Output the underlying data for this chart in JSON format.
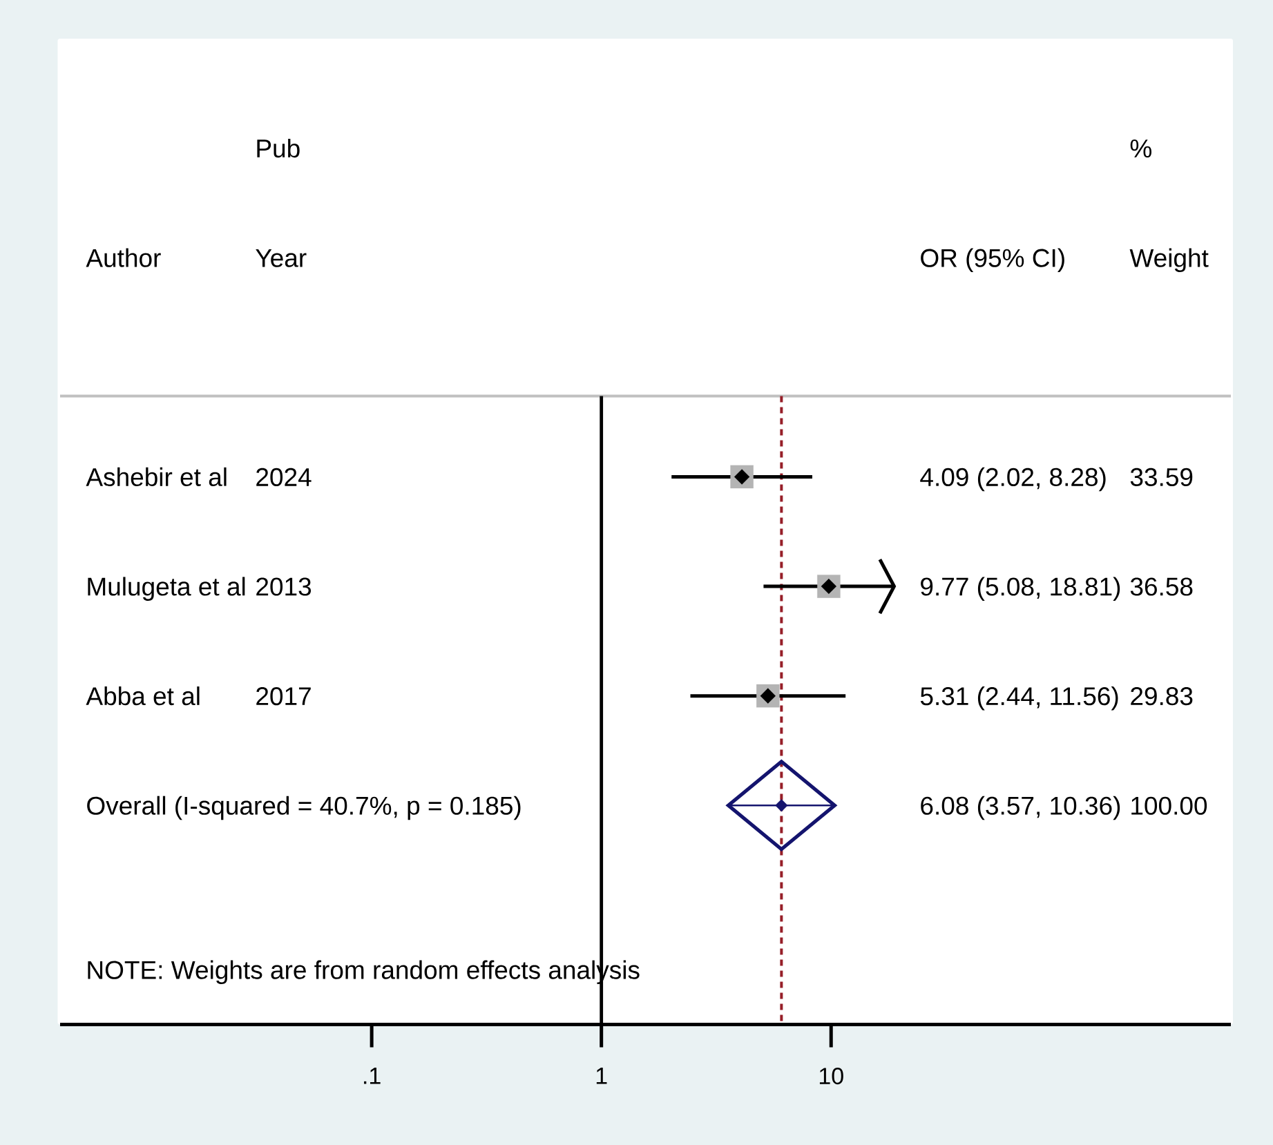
{
  "chart_data": {
    "type": "scatter",
    "orientation": "horizontal",
    "categories": [
      "Ashebir et al",
      "Mulugeta et al",
      "Abba et al",
      "Overall (I-squared = 40.7%, p = 0.185)"
    ],
    "series": [
      {
        "color": "#000000",
        "marker": "diamond",
        "values": [
          4.09,
          9.77,
          5.31,
          null
        ],
        "errors": [
          [
            2.02,
            8.28
          ],
          [
            5.08,
            18.81
          ],
          [
            2.44,
            11.56
          ],
          null
        ]
      },
      {
        "color": "#14146e",
        "marker": "diamond",
        "values": [
          null,
          null,
          null,
          6.08
        ],
        "errors": [
          null,
          null,
          null,
          [
            3.57,
            10.36
          ]
        ]
      }
    ],
    "log": "x",
    "xlim": [
      0.0044,
      550
    ],
    "xticks": [
      {
        "value": 0.1,
        "label": ".1"
      },
      1,
      10
    ],
    "ref_lines": [
      {
        "axis": "x",
        "value": 1,
        "color": "#000000",
        "line_style": "solid"
      },
      {
        "axis": "x",
        "value": 6.08,
        "color": "#961e28",
        "line_style": "dashed"
      }
    ],
    "annotations": [
      "Pub",
      "%",
      "Author",
      "Year",
      "OR (95% CI)",
      "Weight",
      "2024",
      "4.09 (2.02, 8.28)",
      "33.59",
      "2013",
      "9.77 (5.08, 18.81)",
      "36.58",
      "2017",
      "5.31 (2.44, 11.56)",
      "29.83",
      "6.08 (3.57, 10.36)",
      "100.00",
      "NOTE: Weights are from random effects analysis"
    ]
  }
}
